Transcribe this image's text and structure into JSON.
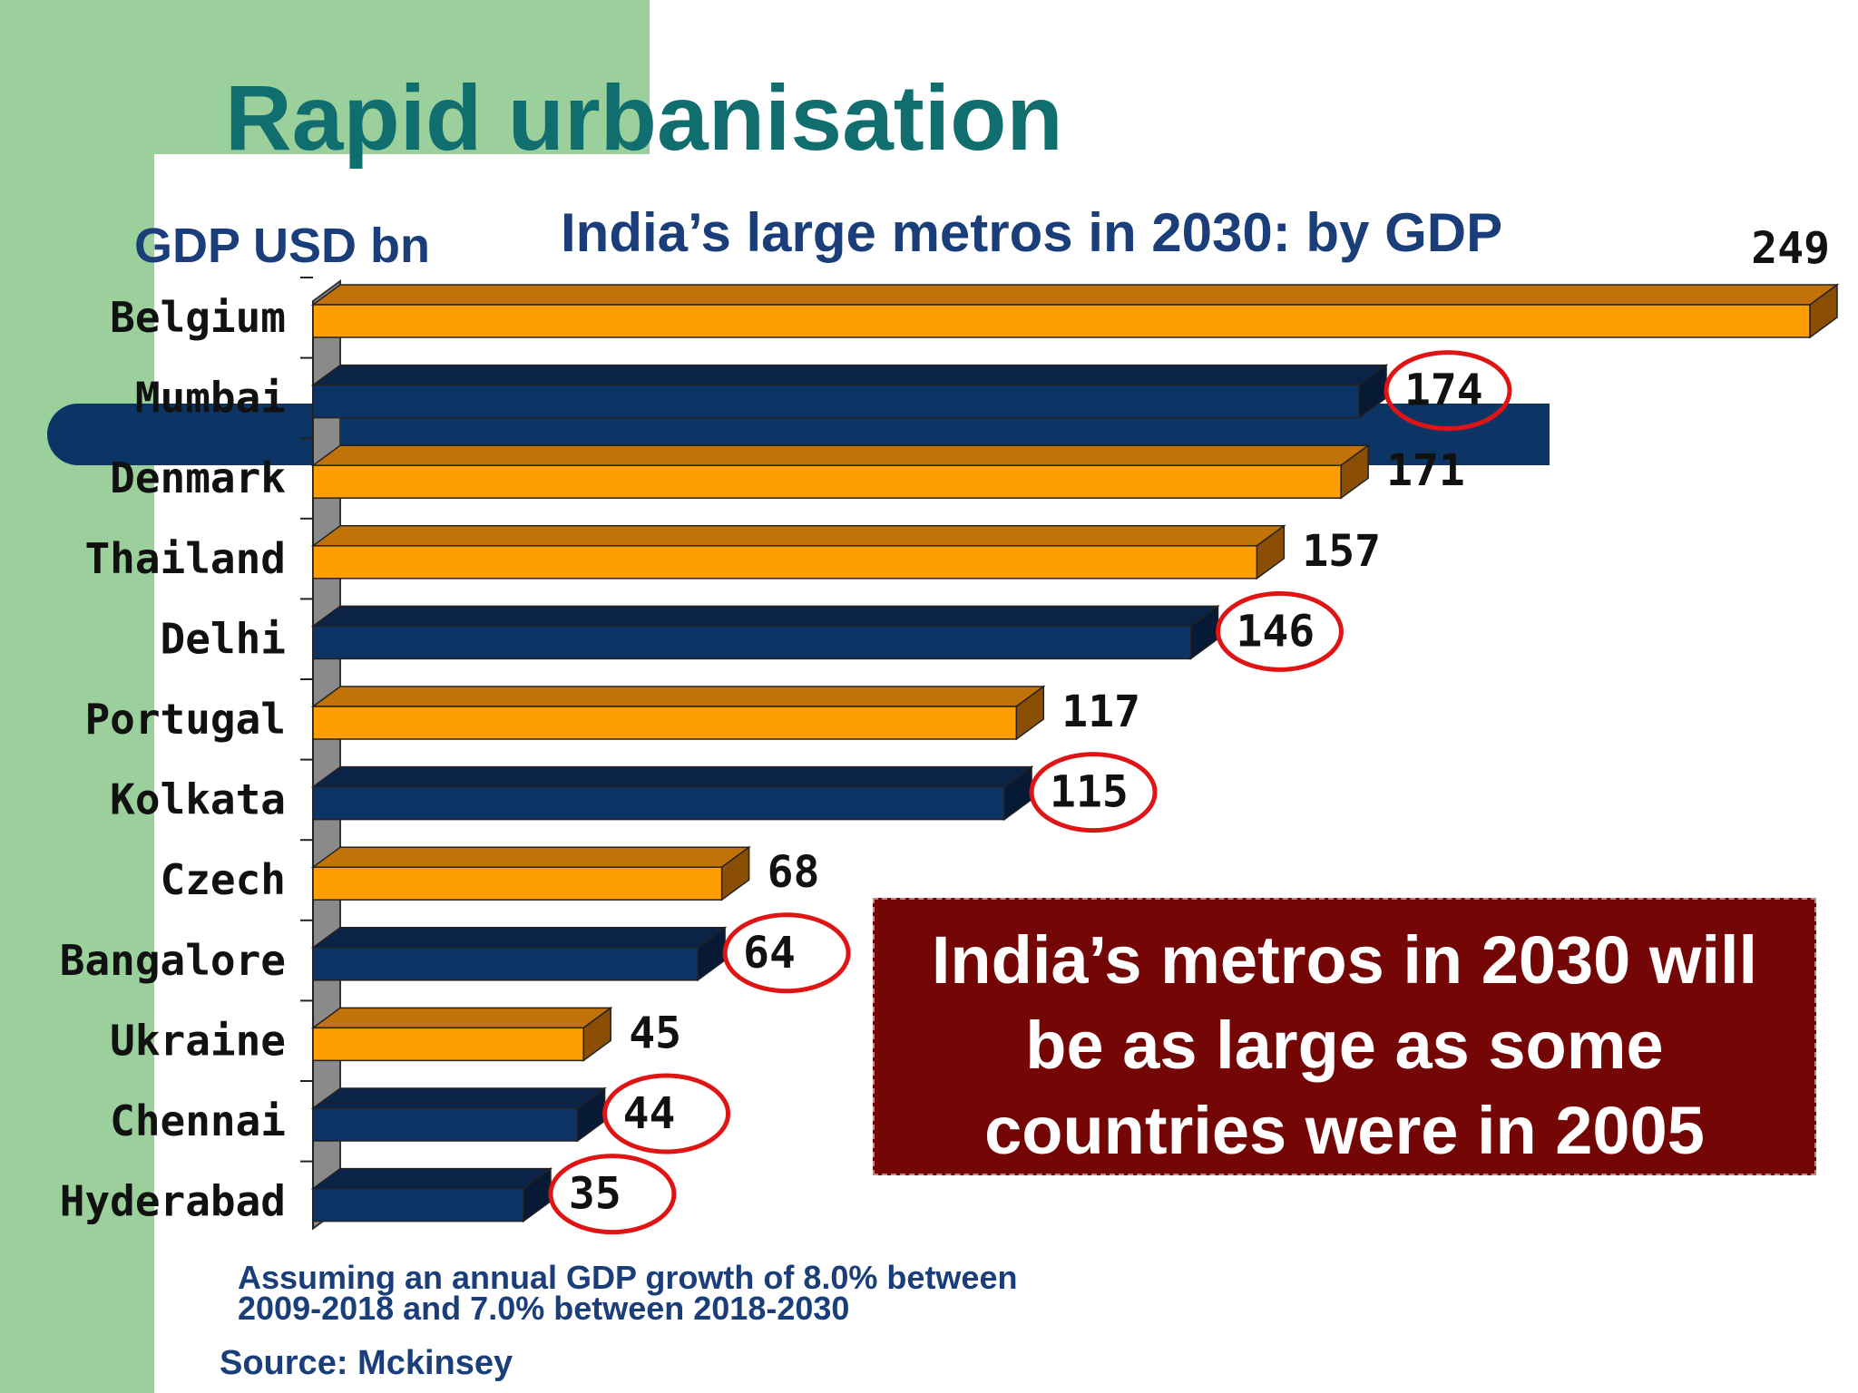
{
  "title": "Rapid urbanisation",
  "callout": {
    "line1": "India’s metros in 2030 will",
    "line2": "be as large as some",
    "line3": "countries were in 2005"
  },
  "footnote": {
    "line1": "Assuming an annual GDP growth of 8.0% between",
    "line2": "2009-2018 and 7.0% between 2018-2030"
  },
  "source": "Source: Mckinsey",
  "colors": {
    "country_bar": "#ff9e00",
    "metro_bar": "#0c3566",
    "title": "#116e6e",
    "label_text": "#1a3e7a",
    "callout_bg": "#740606",
    "highlight_ring": "#e01414"
  },
  "chart_data": {
    "type": "bar",
    "orientation": "horizontal",
    "title": "India’s large metros in 2030: by GDP",
    "ylabel": "GDP USD bn",
    "xlim": [
      0,
      249
    ],
    "grid": false,
    "categories": [
      "Belgium",
      "Mumbai",
      "Denmark",
      "Thailand",
      "Delhi",
      "Portugal",
      "Kolkata",
      "Czech",
      "Bangalore",
      "Ukraine",
      "Chennai",
      "Hyderabad"
    ],
    "values": [
      249,
      174,
      171,
      157,
      146,
      117,
      115,
      68,
      64,
      45,
      44,
      35
    ],
    "groups": [
      "country",
      "metro",
      "country",
      "country",
      "metro",
      "country",
      "metro",
      "country",
      "metro",
      "country",
      "metro",
      "metro"
    ],
    "highlighted": [
      "Mumbai",
      "Delhi",
      "Kolkata",
      "Bangalore",
      "Chennai",
      "Hyderabad"
    ]
  }
}
